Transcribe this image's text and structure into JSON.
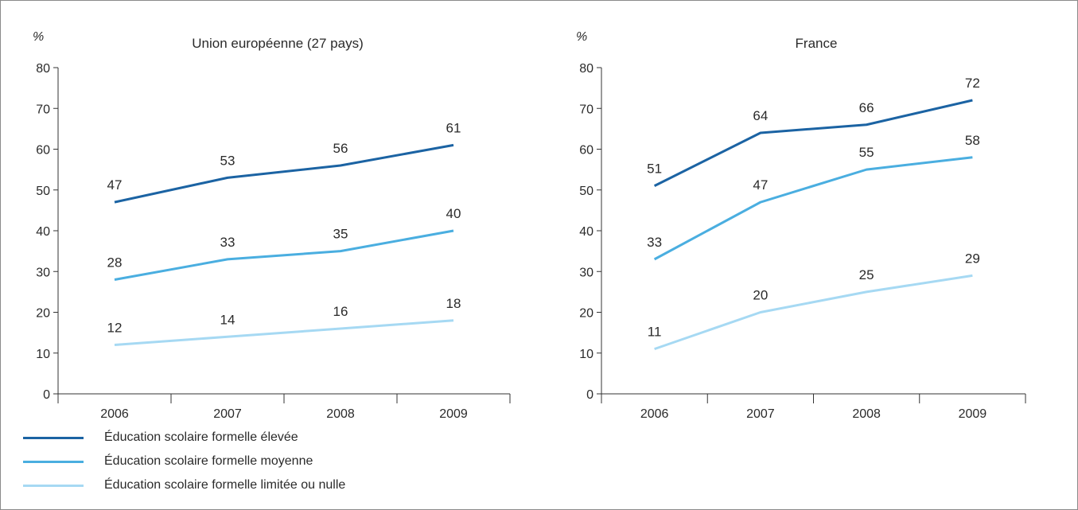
{
  "legend": {
    "items": [
      {
        "label": "Éducation scolaire formelle élevée",
        "color": "#1b63a3"
      },
      {
        "label": "Éducation scolaire formelle moyenne",
        "color": "#4aaee0"
      },
      {
        "label": "Éducation scolaire formelle limitée ou nulle",
        "color": "#a6d9f3"
      }
    ]
  },
  "chart_data": [
    {
      "type": "line",
      "title": "Union européenne (27 pays)",
      "yunit": "%",
      "x": [
        "2006",
        "2007",
        "2008",
        "2009"
      ],
      "ylim": [
        0,
        80
      ],
      "yticks": [
        "0",
        "10",
        "20",
        "30",
        "40",
        "50",
        "60",
        "70",
        "80"
      ],
      "grid": false,
      "series": [
        {
          "name": "Éducation scolaire formelle élevée",
          "color": "#1b63a3",
          "values": [
            47,
            53,
            56,
            61
          ],
          "labels": [
            "47",
            "53",
            "56",
            "61"
          ]
        },
        {
          "name": "Éducation scolaire formelle moyenne",
          "color": "#4aaee0",
          "values": [
            28,
            33,
            35,
            40
          ],
          "labels": [
            "28",
            "33",
            "35",
            "40"
          ]
        },
        {
          "name": "Éducation scolaire formelle limitée ou nulle",
          "color": "#a6d9f3",
          "values": [
            12,
            14,
            16,
            18
          ],
          "labels": [
            "12",
            "14",
            "16",
            "18"
          ]
        }
      ]
    },
    {
      "type": "line",
      "title": "France",
      "yunit": "%",
      "x": [
        "2006",
        "2007",
        "2008",
        "2009"
      ],
      "ylim": [
        0,
        80
      ],
      "yticks": [
        "0",
        "10",
        "20",
        "30",
        "40",
        "50",
        "60",
        "70",
        "80"
      ],
      "grid": false,
      "series": [
        {
          "name": "Éducation scolaire formelle élevée",
          "color": "#1b63a3",
          "values": [
            51,
            64,
            66,
            72
          ],
          "labels": [
            "51",
            "64",
            "66",
            "72"
          ]
        },
        {
          "name": "Éducation scolaire formelle moyenne",
          "color": "#4aaee0",
          "values": [
            33,
            47,
            55,
            58
          ],
          "labels": [
            "33",
            "47",
            "55",
            "58"
          ]
        },
        {
          "name": "Éducation scolaire formelle limitée ou nulle",
          "color": "#a6d9f3",
          "values": [
            11,
            20,
            25,
            29
          ],
          "labels": [
            "11",
            "20",
            "25",
            "29"
          ]
        }
      ]
    }
  ]
}
